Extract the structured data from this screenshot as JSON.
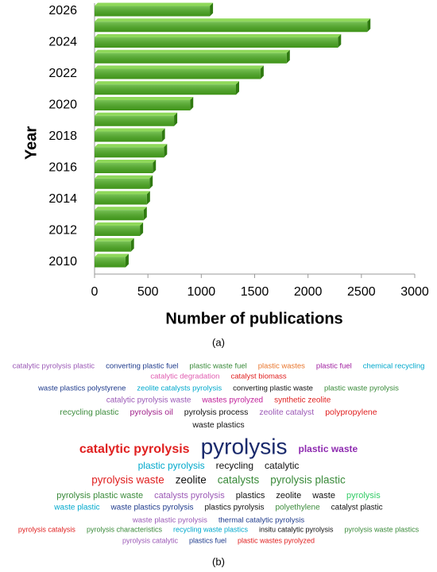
{
  "chart_data": {
    "type": "bar",
    "orientation": "horizontal",
    "y_label": "Year",
    "x_label": "Number of publications",
    "categories": [
      "2010",
      null,
      "2012",
      null,
      "2014",
      null,
      "2016",
      null,
      "2018",
      null,
      "2020",
      null,
      "2022",
      null,
      "2024",
      null,
      "2026"
    ],
    "values": [
      290,
      340,
      425,
      460,
      490,
      515,
      545,
      650,
      630,
      745,
      895,
      1325,
      1555,
      1800,
      2280,
      2555,
      1080
    ],
    "color": "#4caf1f",
    "xlim": [
      0,
      3000
    ],
    "xticks": [
      0,
      500,
      1000,
      1500,
      2000,
      2500,
      3000
    ],
    "grid": false
  },
  "captions": [
    "(a)",
    "(b)"
  ],
  "word_cloud": {
    "rows": [
      [
        {
          "text": "catalytic pyrolysis plastic",
          "color": "#9b59b6"
        },
        {
          "text": "converting plastic fuel",
          "color": "#1f3b8c"
        },
        {
          "text": "plastic waste fuel",
          "color": "#3a8a3a"
        },
        {
          "text": "plastic wastes",
          "color": "#e8742a"
        },
        {
          "text": "plastic fuel",
          "color": "#a020a0"
        },
        {
          "text": "chemical recycling",
          "color": "#00a8cc"
        }
      ],
      [
        {
          "text": "catalytic degradation",
          "color": "#e05cb0"
        },
        {
          "text": "catalyst biomass",
          "color": "#e02020"
        }
      ],
      [
        {
          "text": "waste plastics polystyrene",
          "color": "#1f3b8c"
        },
        {
          "text": "zeolite catalysts pyrolysis",
          "color": "#00a8cc"
        },
        {
          "text": "converting plastic waste",
          "color": "#111111"
        },
        {
          "text": "plastic waste pyrolysis",
          "color": "#3a8a3a"
        }
      ],
      [
        {
          "text": "catalytic pyrolysis waste",
          "color": "#9b59b6"
        },
        {
          "text": "wastes pyrolyzed",
          "color": "#c0209a"
        },
        {
          "text": "synthetic zeolite",
          "color": "#e02020"
        }
      ],
      [
        {
          "text": "recycling plastic",
          "color": "#3a8a3a"
        },
        {
          "text": "pyrolysis oil",
          "color": "#a0208a"
        },
        {
          "text": "pyrolysis process",
          "color": "#111111"
        },
        {
          "text": "zeolite catalyst",
          "color": "#9b59b6"
        },
        {
          "text": "polypropylene",
          "color": "#e02020"
        }
      ],
      [
        {
          "text": "waste plastics",
          "color": "#111111"
        }
      ],
      [
        {
          "text": "catalytic pyrolysis",
          "color": "#e02020"
        },
        {
          "text": "pyrolysis",
          "color": "#1a2a6c"
        },
        {
          "text": "plastic waste",
          "color": "#8e2bb0"
        }
      ],
      [
        {
          "text": "plastic pyrolysis",
          "color": "#00a8cc"
        },
        {
          "text": "recycling",
          "color": "#111111"
        },
        {
          "text": "catalytic",
          "color": "#111111"
        }
      ],
      [
        {
          "text": "pyrolysis waste",
          "color": "#e02020"
        },
        {
          "text": "zeolite",
          "color": "#111111"
        },
        {
          "text": "catalysts",
          "color": "#3a8a3a"
        },
        {
          "text": "pyrolysis plastic",
          "color": "#3a8a3a"
        }
      ],
      [
        {
          "text": "pyrolysis plastic waste",
          "color": "#3a8a3a"
        },
        {
          "text": "catalysts pyrolysis",
          "color": "#9b59b6"
        },
        {
          "text": "plastics",
          "color": "#111111"
        },
        {
          "text": "zeolite",
          "color": "#111111"
        },
        {
          "text": "waste",
          "color": "#111111"
        },
        {
          "text": "pyrolysis",
          "color": "#33cc66"
        }
      ],
      [
        {
          "text": "waste plastic",
          "color": "#00a8cc"
        },
        {
          "text": "waste plastics pyrolysis",
          "color": "#1f3b8c"
        },
        {
          "text": "plastics pyrolysis",
          "color": "#111111"
        },
        {
          "text": "polyethylene",
          "color": "#3a8a3a"
        },
        {
          "text": "catalyst plastic",
          "color": "#111111"
        }
      ],
      [
        {
          "text": "waste plastic pyrolysis",
          "color": "#9b59b6"
        },
        {
          "text": "thermal catalytic pyrolysis",
          "color": "#1f3b8c"
        }
      ],
      [
        {
          "text": "pyrolysis catalysis",
          "color": "#e02020"
        },
        {
          "text": "pyrolysis characteristics",
          "color": "#3a8a3a"
        },
        {
          "text": "recycling waste plastics",
          "color": "#00a8cc"
        },
        {
          "text": "insitu catalytic pyrolysis",
          "color": "#111111"
        },
        {
          "text": "pyrolysis waste plastics",
          "color": "#3a8a3a"
        }
      ],
      [
        {
          "text": "pyrolysis catalytic",
          "color": "#9b59b6"
        },
        {
          "text": "plastics fuel",
          "color": "#1f3b8c"
        },
        {
          "text": "plastic wastes pyrolyzed",
          "color": "#e02020"
        }
      ]
    ]
  }
}
